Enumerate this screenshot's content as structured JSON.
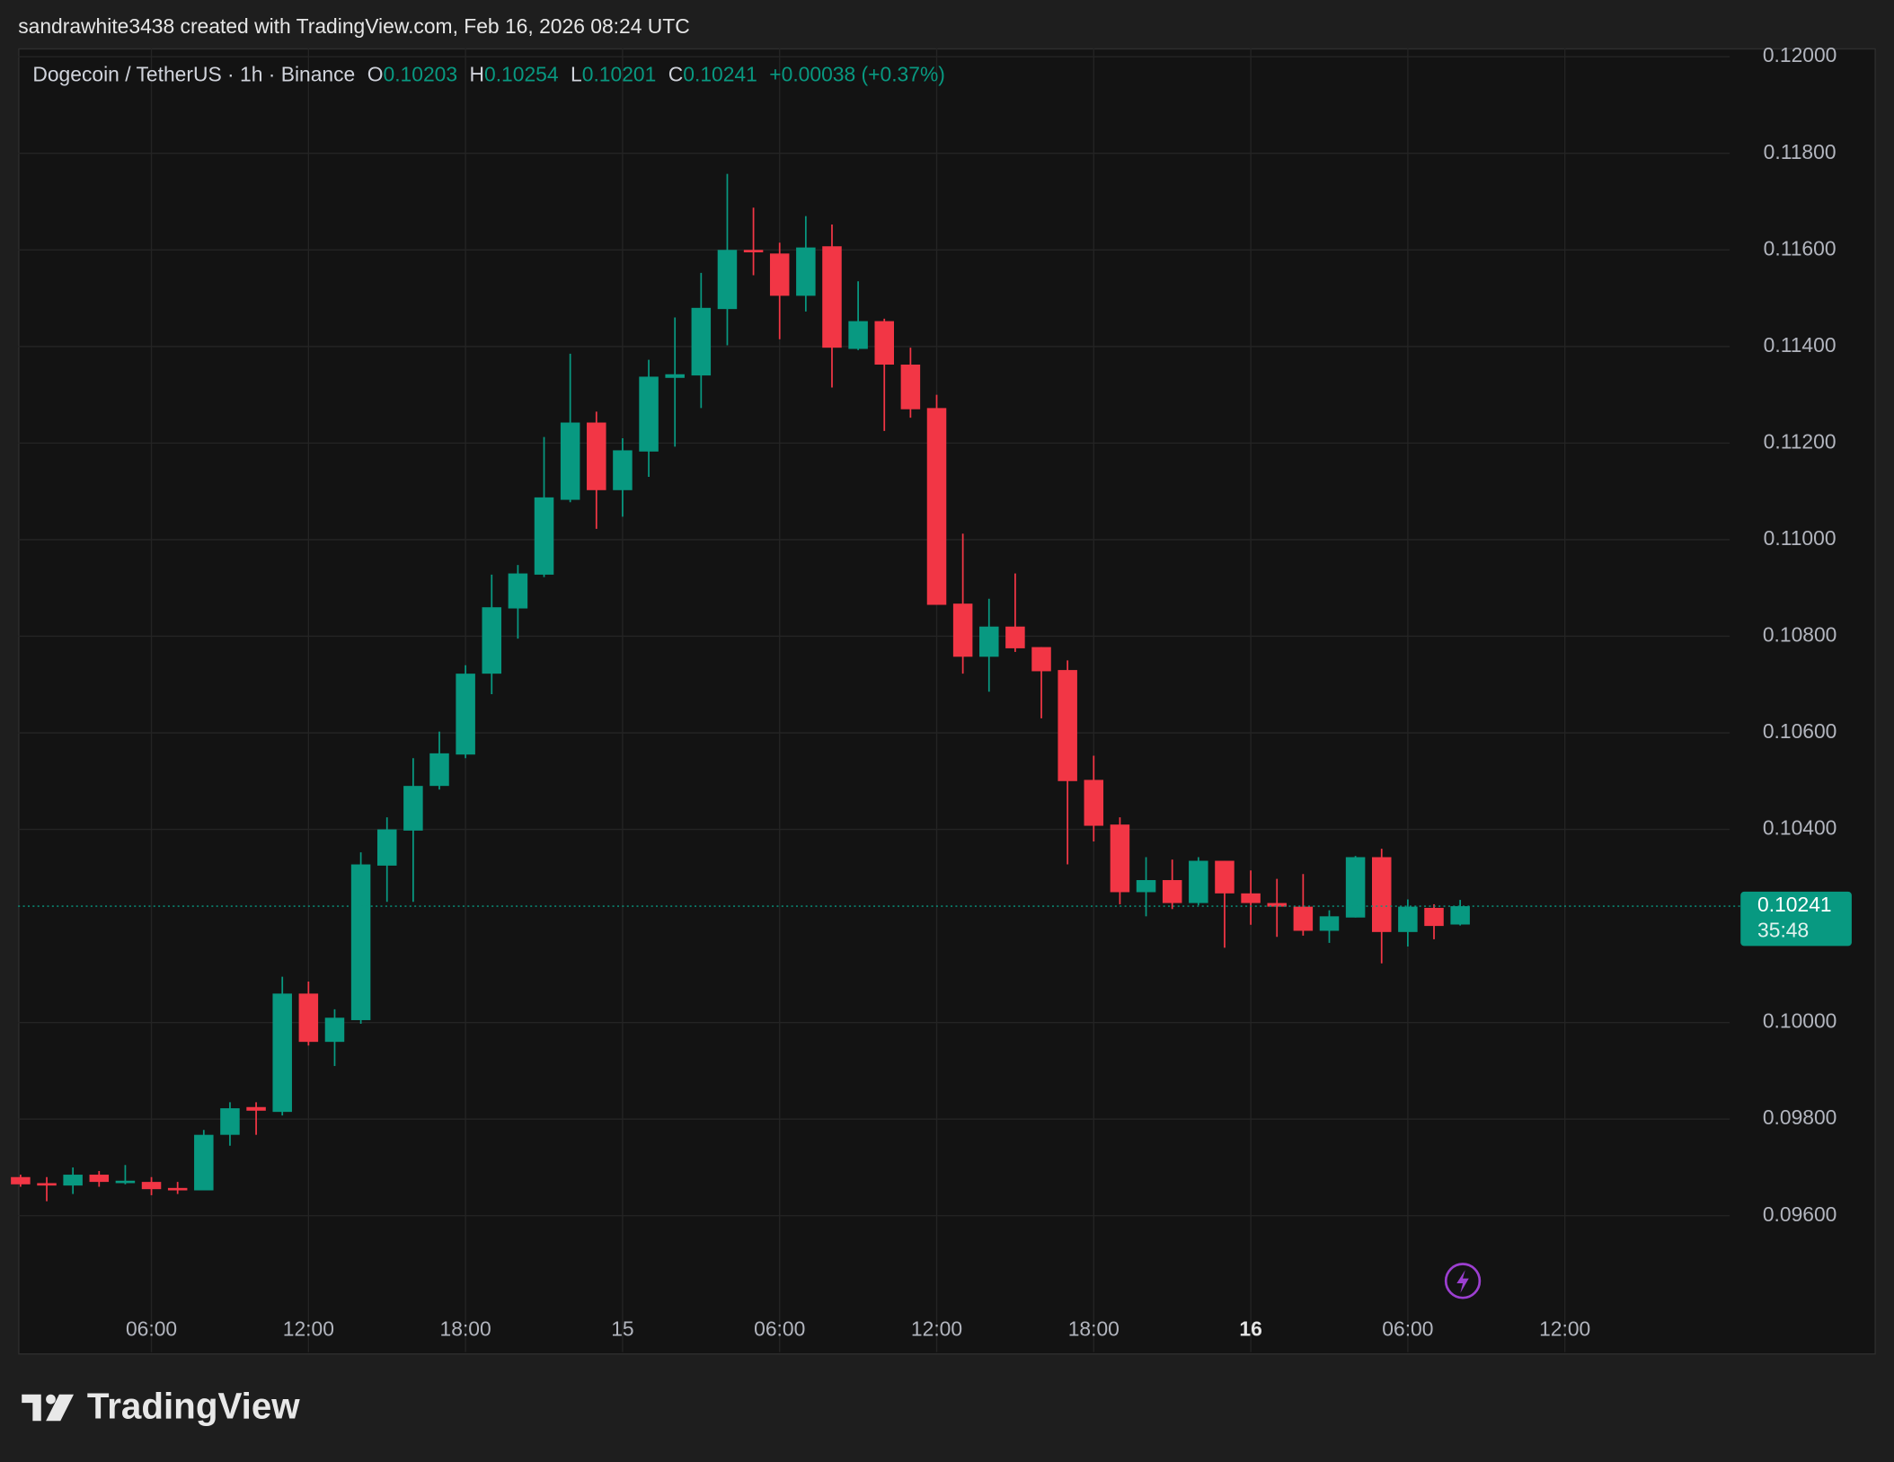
{
  "header": {
    "credit": "sandrawhite3438 created with TradingView.com, Feb 16, 2026 08:24 UTC"
  },
  "footer": {
    "brand": "TradingView"
  },
  "chart_data": {
    "type": "candlestick",
    "title": "Dogecoin / TetherUS · 1h · Binance",
    "ohlc_header": [
      {
        "key": "O",
        "value": "0.10203"
      },
      {
        "key": "H",
        "value": "0.10254"
      },
      {
        "key": "L",
        "value": "0.10201"
      },
      {
        "key": "C",
        "value": "0.10241"
      }
    ],
    "change": "+0.00038 (+0.37%)",
    "last_price_label": "0.10241",
    "countdown": "35:48",
    "up_color": "#089981",
    "down_color": "#f23645",
    "grid": true,
    "categories": [
      null,
      null,
      null,
      null,
      null,
      "06:00",
      null,
      null,
      null,
      null,
      null,
      "12:00",
      null,
      null,
      null,
      null,
      null,
      "18:00",
      null,
      null,
      null,
      null,
      null,
      "15",
      null,
      null,
      null,
      null,
      null,
      "06:00",
      null,
      null,
      null,
      null,
      null,
      "12:00",
      null,
      null,
      null,
      null,
      null,
      "18:00",
      null,
      null,
      null,
      null,
      null,
      "16",
      null,
      null,
      null,
      null,
      null,
      "06:00",
      null,
      null,
      null,
      null,
      null,
      "12:00"
    ],
    "open": [
      0.0968,
      0.096675,
      0.096625,
      0.09685,
      0.096675,
      0.0967,
      0.096575,
      0.096525,
      0.097675,
      0.09825,
      0.09815,
      0.1006,
      0.0996,
      0.10005,
      0.10325,
      0.103975,
      0.1049,
      0.10555,
      0.107225,
      0.108575,
      0.109275,
      0.110825,
      0.112425,
      0.111025,
      0.111825,
      0.11335,
      0.1134,
      0.114775,
      0.116,
      0.115925,
      0.11505,
      0.116075,
      0.11395,
      0.114525,
      0.113625,
      0.112725,
      0.108675,
      0.107575,
      0.1082,
      0.107775,
      0.1073,
      0.105025,
      0.1041,
      0.1027,
      0.10295,
      0.102475,
      0.10335,
      0.102675,
      0.102475,
      0.1024,
      0.1019,
      0.102175,
      0.103425,
      0.101875,
      0.102375,
      0.10203,
      null,
      null,
      null,
      null
    ],
    "high": [
      0.09685,
      0.0968,
      0.097,
      0.096925,
      0.09705,
      0.0968,
      0.0967,
      0.097775,
      0.09835,
      0.09835,
      0.10095,
      0.10085,
      0.100275,
      0.103525,
      0.10425,
      0.105475,
      0.106025,
      0.1074,
      0.109275,
      0.109475,
      0.112125,
      0.11385,
      0.11265,
      0.1121,
      0.113725,
      0.1146,
      0.115525,
      0.117575,
      0.116875,
      0.11615,
      0.1167,
      0.116525,
      0.11535,
      0.114575,
      0.113975,
      0.113,
      0.110125,
      0.108775,
      0.1093,
      0.107775,
      0.1075,
      0.105525,
      0.10425,
      0.103425,
      0.103375,
      0.103425,
      0.10335,
      0.10315,
      0.102975,
      0.103075,
      0.102325,
      0.10345,
      0.1036,
      0.10255,
      0.10245,
      0.10254,
      null,
      null,
      null,
      null
    ],
    "low": [
      0.0966,
      0.0963,
      0.09645,
      0.0966,
      0.09665,
      0.096425,
      0.09645,
      0.096525,
      0.09745,
      0.097675,
      0.098075,
      0.099525,
      0.0991,
      0.099975,
      0.1025,
      0.1025,
      0.104825,
      0.105475,
      0.1068,
      0.10795,
      0.109225,
      0.110775,
      0.110225,
      0.110475,
      0.1113,
      0.111925,
      0.112725,
      0.114025,
      0.115475,
      0.11415,
      0.114725,
      0.11315,
      0.113925,
      0.11225,
      0.112525,
      0.10865,
      0.107225,
      0.10685,
      0.107675,
      0.1063,
      0.103275,
      0.10375,
      0.10245,
      0.1022,
      0.10235,
      0.102425,
      0.10155,
      0.102025,
      0.101775,
      0.1018,
      0.10165,
      0.102175,
      0.101225,
      0.101575,
      0.101725,
      0.10201,
      null,
      null,
      null,
      null
    ],
    "close": [
      0.09665,
      0.096625,
      0.09685,
      0.0967,
      0.096725,
      0.09655,
      0.096525,
      0.097675,
      0.098225,
      0.098175,
      0.1006,
      0.0996,
      0.1001,
      0.103275,
      0.104,
      0.1049,
      0.105575,
      0.107225,
      0.1086,
      0.1093,
      0.110875,
      0.112425,
      0.111025,
      0.11185,
      0.113375,
      0.113425,
      0.1148,
      0.116,
      0.11595,
      0.11505,
      0.11605,
      0.113975,
      0.114525,
      0.113625,
      0.1127,
      0.10865,
      0.107575,
      0.1082,
      0.10775,
      0.107275,
      0.105,
      0.104075,
      0.1027,
      0.10295,
      0.102475,
      0.10335,
      0.102675,
      0.102475,
      0.1024,
      0.1019,
      0.1022,
      0.103425,
      0.101875,
      0.1024,
      0.102,
      0.10241,
      null,
      null,
      null,
      null
    ],
    "ylim": [
      0.093175,
      0.120175
    ],
    "yticks": [
      {
        "value": 0.12,
        "label": "0.12000"
      },
      {
        "value": 0.118,
        "label": "0.11800"
      },
      {
        "value": 0.116,
        "label": "0.11600"
      },
      {
        "value": 0.114,
        "label": "0.11400"
      },
      {
        "value": 0.112,
        "label": "0.11200"
      },
      {
        "value": 0.11,
        "label": "0.11000"
      },
      {
        "value": 0.108,
        "label": "0.10800"
      },
      {
        "value": 0.106,
        "label": "0.10600"
      },
      {
        "value": 0.104,
        "label": "0.10400"
      },
      {
        "value": 0.1,
        "label": "0.10000"
      },
      {
        "value": 0.098,
        "label": "0.09800"
      },
      {
        "value": 0.096,
        "label": "0.09600"
      }
    ]
  }
}
